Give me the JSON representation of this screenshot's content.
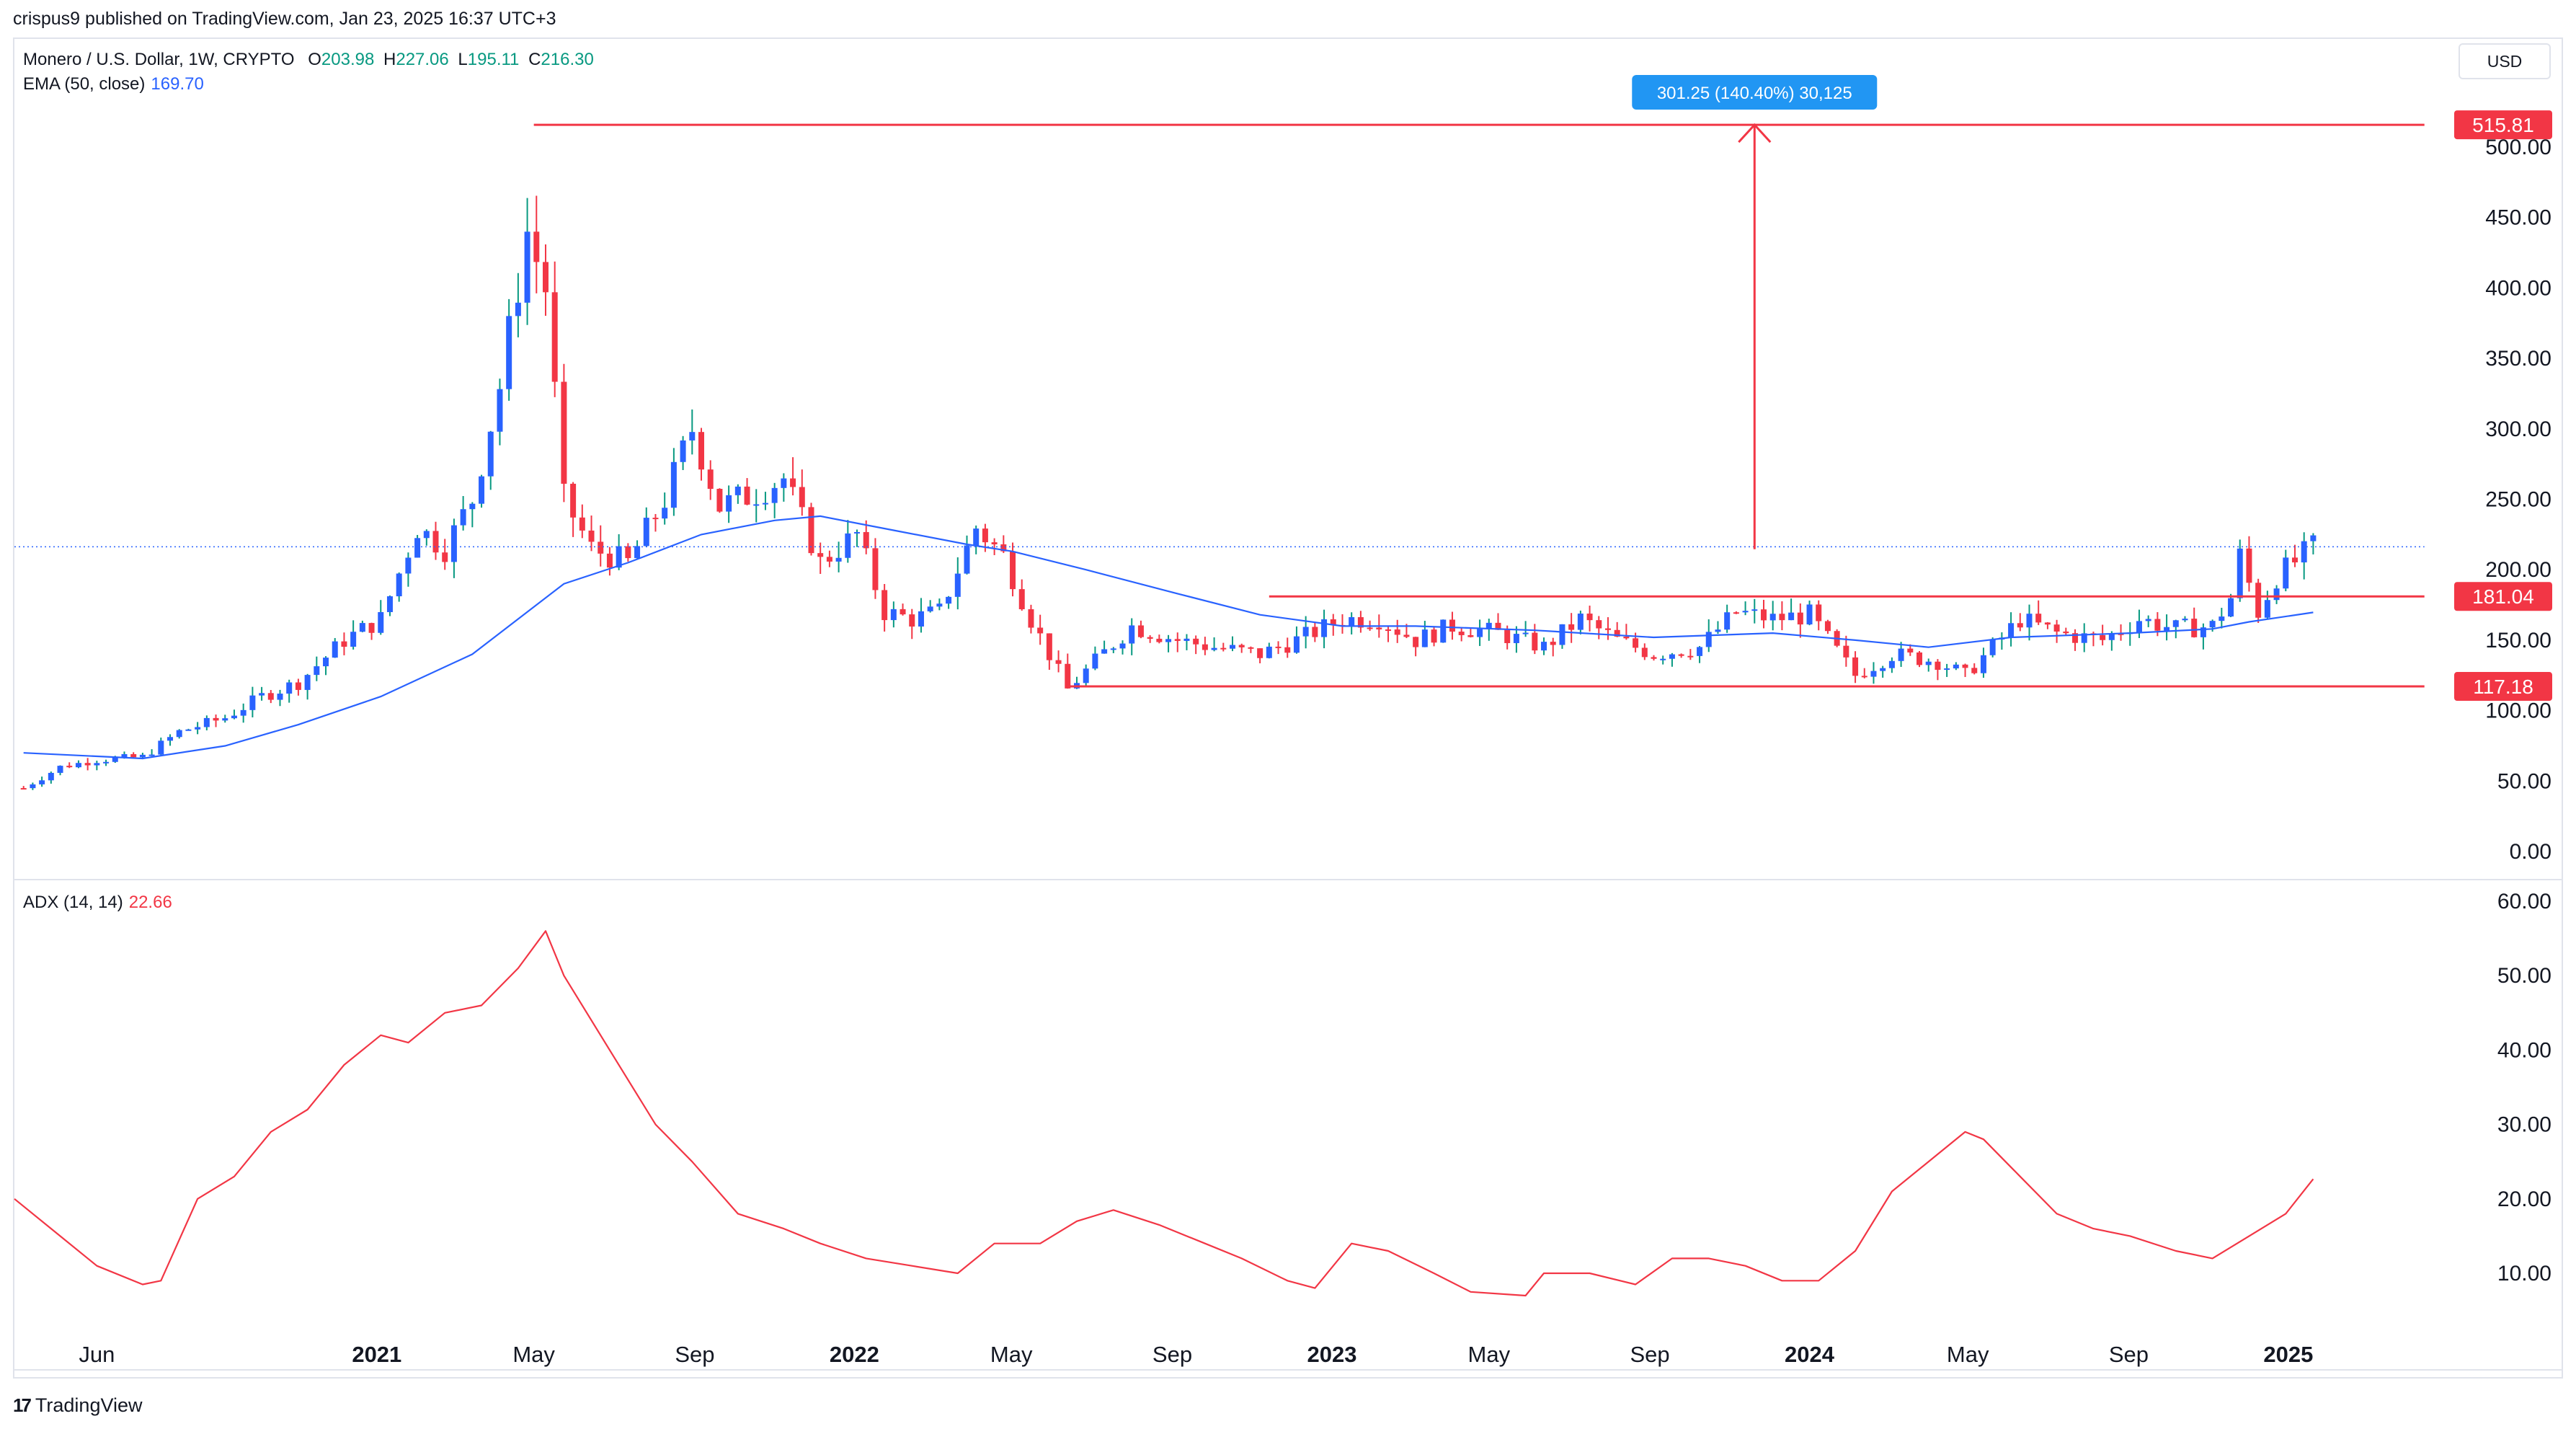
{
  "header": {
    "publisher_line": "crispus9 published on TradingView.com, Jan 23, 2025 16:37 UTC+3"
  },
  "legend": {
    "symbol": "Monero / U.S. Dollar, 1W, CRYPTO",
    "open_label": "O",
    "open": "203.98",
    "high_label": "H",
    "high": "227.06",
    "low_label": "L",
    "low": "195.11",
    "close_label": "C",
    "close": "216.30",
    "ema_label": "EMA (50, close)",
    "ema_value": "169.70",
    "adx_label": "ADX (14, 14)",
    "adx_value": "22.66"
  },
  "currency_button": "USD",
  "footer": {
    "logo_glyph": "17",
    "brand": "TradingView"
  },
  "colors": {
    "up": "#2962ff",
    "down": "#f23645",
    "wick_up": "#089981",
    "ema": "#2962ff",
    "adx": "#f23645",
    "level": "#f23645",
    "measure_bg": "#2196f3"
  },
  "chart_data": [
    {
      "type": "candlestick",
      "title": "Monero / U.S. Dollar, 1W, CRYPTO",
      "ylim": [
        0,
        560
      ],
      "y_ticks": [
        "0.00",
        "50.00",
        "100.00",
        "150.00",
        "200.00",
        "250.00",
        "300.00",
        "350.00",
        "400.00",
        "450.00",
        "500.00"
      ],
      "x_ticks": [
        {
          "label": "Jun",
          "date": "2020-06-01"
        },
        {
          "label": "2021",
          "date": "2021-01-01"
        },
        {
          "label": "May",
          "date": "2021-05-01"
        },
        {
          "label": "Sep",
          "date": "2021-09-01"
        },
        {
          "label": "2022",
          "date": "2022-01-01"
        },
        {
          "label": "May",
          "date": "2022-05-01"
        },
        {
          "label": "Sep",
          "date": "2022-09-01"
        },
        {
          "label": "2023",
          "date": "2023-01-01"
        },
        {
          "label": "May",
          "date": "2023-05-01"
        },
        {
          "label": "Sep",
          "date": "2023-09-01"
        },
        {
          "label": "2024",
          "date": "2024-01-01"
        },
        {
          "label": "May",
          "date": "2024-05-01"
        },
        {
          "label": "Sep",
          "date": "2024-09-01"
        },
        {
          "label": "2025",
          "date": "2025-01-01"
        }
      ],
      "x_range": [
        "2020-03-30",
        "2025-05-05"
      ],
      "price_keypoints": [
        [
          "2020-04-06",
          45
        ],
        [
          "2020-05-04",
          60
        ],
        [
          "2020-06-01",
          65
        ],
        [
          "2020-07-06",
          67
        ],
        [
          "2020-08-03",
          85
        ],
        [
          "2020-09-07",
          95
        ],
        [
          "2020-10-05",
          110
        ],
        [
          "2020-11-02",
          120
        ],
        [
          "2020-12-07",
          150
        ],
        [
          "2021-01-04",
          165
        ],
        [
          "2021-02-01",
          230
        ],
        [
          "2021-02-22",
          215
        ],
        [
          "2021-03-15",
          250
        ],
        [
          "2021-04-05",
          330
        ],
        [
          "2021-04-26",
          440
        ],
        [
          "2021-05-10",
          400
        ],
        [
          "2021-05-24",
          250
        ],
        [
          "2021-06-14",
          215
        ],
        [
          "2021-07-12",
          205
        ],
        [
          "2021-08-09",
          250
        ],
        [
          "2021-08-30",
          300
        ],
        [
          "2021-09-20",
          245
        ],
        [
          "2021-10-18",
          255
        ],
        [
          "2021-11-08",
          265
        ],
        [
          "2021-12-06",
          205
        ],
        [
          "2022-01-03",
          225
        ],
        [
          "2022-01-24",
          170
        ],
        [
          "2022-02-14",
          165
        ],
        [
          "2022-03-07",
          170
        ],
        [
          "2022-04-04",
          230
        ],
        [
          "2022-04-25",
          210
        ],
        [
          "2022-05-16",
          165
        ],
        [
          "2022-06-13",
          115
        ],
        [
          "2022-07-04",
          135
        ],
        [
          "2022-08-01",
          160
        ],
        [
          "2022-09-05",
          150
        ],
        [
          "2022-10-03",
          145
        ],
        [
          "2022-11-07",
          140
        ],
        [
          "2022-12-05",
          150
        ],
        [
          "2023-01-09",
          165
        ],
        [
          "2023-02-06",
          165
        ],
        [
          "2023-03-06",
          150
        ],
        [
          "2023-04-03",
          160
        ],
        [
          "2023-05-08",
          155
        ],
        [
          "2023-06-12",
          145
        ],
        [
          "2023-07-10",
          165
        ],
        [
          "2023-08-07",
          150
        ],
        [
          "2023-09-04",
          140
        ],
        [
          "2023-10-09",
          145
        ],
        [
          "2023-11-06",
          170
        ],
        [
          "2023-12-04",
          165
        ],
        [
          "2024-01-01",
          168
        ],
        [
          "2024-02-05",
          125
        ],
        [
          "2024-03-04",
          140
        ],
        [
          "2024-04-08",
          135
        ],
        [
          "2024-04-29",
          125
        ],
        [
          "2024-05-20",
          145
        ],
        [
          "2024-06-10",
          165
        ],
        [
          "2024-07-08",
          155
        ],
        [
          "2024-08-12",
          150
        ],
        [
          "2024-09-09",
          165
        ],
        [
          "2024-10-07",
          158
        ],
        [
          "2024-11-04",
          160
        ],
        [
          "2024-11-18",
          180
        ],
        [
          "2024-11-25",
          210
        ],
        [
          "2024-12-09",
          170
        ],
        [
          "2024-12-23",
          195
        ],
        [
          "2025-01-20",
          216.3
        ]
      ],
      "ema_50": {
        "label": "EMA (50, close)",
        "last": 169.7,
        "points": [
          [
            "2020-04-06",
            70
          ],
          [
            "2020-07-06",
            66
          ],
          [
            "2020-09-07",
            75
          ],
          [
            "2020-11-02",
            90
          ],
          [
            "2021-01-04",
            110
          ],
          [
            "2021-03-15",
            140
          ],
          [
            "2021-04-26",
            170
          ],
          [
            "2021-05-24",
            190
          ],
          [
            "2021-07-12",
            205
          ],
          [
            "2021-09-06",
            225
          ],
          [
            "2021-11-01",
            235
          ],
          [
            "2021-12-06",
            238
          ],
          [
            "2022-01-31",
            228
          ],
          [
            "2022-03-28",
            218
          ],
          [
            "2022-05-02",
            213
          ],
          [
            "2022-06-27",
            200
          ],
          [
            "2022-09-05",
            183
          ],
          [
            "2022-11-07",
            168
          ],
          [
            "2023-01-09",
            160
          ],
          [
            "2023-03-06",
            160
          ],
          [
            "2023-06-05",
            157
          ],
          [
            "2023-09-04",
            152
          ],
          [
            "2023-12-04",
            155
          ],
          [
            "2024-02-05",
            150
          ],
          [
            "2024-04-01",
            145
          ],
          [
            "2024-06-03",
            152
          ],
          [
            "2024-09-02",
            155
          ],
          [
            "2024-11-04",
            158
          ],
          [
            "2024-12-02",
            163
          ],
          [
            "2025-01-20",
            169.7
          ]
        ]
      },
      "levels": [
        {
          "label": "515.81",
          "value": 515.81,
          "from": "2021-05-01",
          "to": "2025-04-15"
        },
        {
          "label": "181.04",
          "value": 181.04,
          "from": "2022-11-14",
          "to": "2025-04-15"
        },
        {
          "label": "117.18",
          "value": 117.18,
          "from": "2022-06-13",
          "to": "2025-04-15"
        }
      ],
      "current_price": {
        "value": 216.3,
        "from": "2020-03-30",
        "to": "2025-04-15"
      },
      "measure": {
        "text": "301.25 (140.40%) 30,125",
        "date": "2023-11-20",
        "from": 214.56,
        "to": 515.81
      }
    },
    {
      "type": "line",
      "title": "ADX (14, 14)",
      "ylim": [
        0,
        60
      ],
      "y_ticks": [
        "10.00",
        "20.00",
        "30.00",
        "40.00",
        "50.00",
        "60.00"
      ],
      "series": [
        {
          "name": "ADX (14, 14)",
          "last": 22.66,
          "points": [
            [
              "2020-03-30",
              20
            ],
            [
              "2020-05-04",
              15
            ],
            [
              "2020-06-01",
              11
            ],
            [
              "2020-07-06",
              8.5
            ],
            [
              "2020-07-20",
              9
            ],
            [
              "2020-08-17",
              20
            ],
            [
              "2020-09-14",
              23
            ],
            [
              "2020-10-12",
              29
            ],
            [
              "2020-11-09",
              32
            ],
            [
              "2020-12-07",
              38
            ],
            [
              "2021-01-04",
              42
            ],
            [
              "2021-01-25",
              41
            ],
            [
              "2021-02-22",
              45
            ],
            [
              "2021-03-22",
              46
            ],
            [
              "2021-04-19",
              51
            ],
            [
              "2021-05-10",
              56
            ],
            [
              "2021-05-24",
              50
            ],
            [
              "2021-06-28",
              40
            ],
            [
              "2021-08-02",
              30
            ],
            [
              "2021-08-30",
              25
            ],
            [
              "2021-10-04",
              18
            ],
            [
              "2021-11-08",
              16
            ],
            [
              "2021-12-06",
              14
            ],
            [
              "2022-01-10",
              12
            ],
            [
              "2022-02-14",
              11
            ],
            [
              "2022-03-21",
              10
            ],
            [
              "2022-04-18",
              14
            ],
            [
              "2022-05-23",
              14
            ],
            [
              "2022-06-20",
              17
            ],
            [
              "2022-07-18",
              18.5
            ],
            [
              "2022-08-22",
              16.5
            ],
            [
              "2022-09-26",
              14
            ],
            [
              "2022-10-24",
              12
            ],
            [
              "2022-11-28",
              9
            ],
            [
              "2022-12-19",
              8
            ],
            [
              "2023-01-16",
              14
            ],
            [
              "2023-02-13",
              13
            ],
            [
              "2023-03-20",
              10
            ],
            [
              "2023-04-17",
              7.5
            ],
            [
              "2023-05-29",
              7
            ],
            [
              "2023-06-12",
              10
            ],
            [
              "2023-07-17",
              10
            ],
            [
              "2023-08-21",
              8.5
            ],
            [
              "2023-09-18",
              12
            ],
            [
              "2023-10-16",
              12
            ],
            [
              "2023-11-13",
              11
            ],
            [
              "2023-12-11",
              9
            ],
            [
              "2024-01-08",
              9
            ],
            [
              "2024-02-05",
              13
            ],
            [
              "2024-03-04",
              21
            ],
            [
              "2024-04-08",
              26
            ],
            [
              "2024-04-29",
              29
            ],
            [
              "2024-05-13",
              28
            ],
            [
              "2024-06-10",
              23
            ],
            [
              "2024-07-08",
              18
            ],
            [
              "2024-08-05",
              16
            ],
            [
              "2024-09-02",
              15
            ],
            [
              "2024-10-07",
              13
            ],
            [
              "2024-11-04",
              12
            ],
            [
              "2024-12-02",
              15
            ],
            [
              "2024-12-30",
              18
            ],
            [
              "2025-01-20",
              22.66
            ]
          ]
        }
      ]
    }
  ]
}
